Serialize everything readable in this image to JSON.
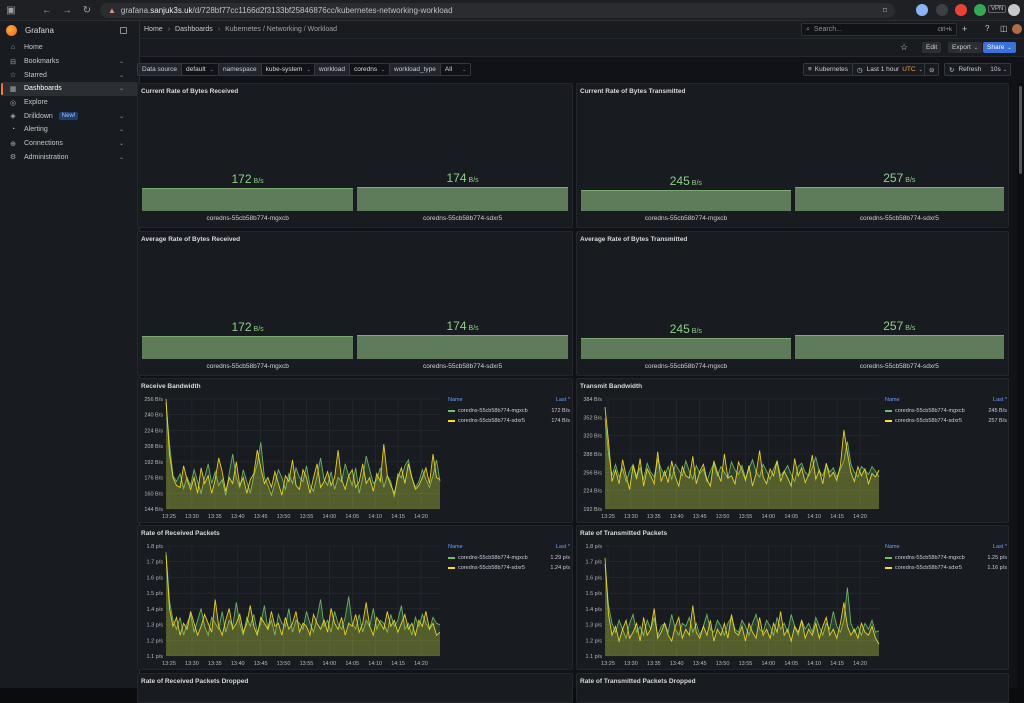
{
  "browser": {
    "url_scheme": "grafana.",
    "url_host": "sanjuk3s.uk",
    "url_path": "/d/728bf77cc1166d2f3133bf25846876cc/kubernetes-networking-workload"
  },
  "sidebar": {
    "brand": "Grafana",
    "items": [
      {
        "label": "Home",
        "icon": "home-icon",
        "chev": ""
      },
      {
        "label": "Bookmarks",
        "icon": "bookmark-icon",
        "chev": "⌄"
      },
      {
        "label": "Starred",
        "icon": "star-icon",
        "chev": "⌄"
      },
      {
        "label": "Dashboards",
        "icon": "dashboards-icon",
        "chev": "⌄"
      },
      {
        "label": "Explore",
        "icon": "compass-icon",
        "chev": ""
      },
      {
        "label": "Drilldown",
        "icon": "drilldown-icon",
        "chev": "⌄",
        "badge": "New!"
      },
      {
        "label": "Alerting",
        "icon": "bell-icon",
        "chev": "⌄"
      },
      {
        "label": "Connections",
        "icon": "connections-icon",
        "chev": "⌄"
      },
      {
        "label": "Administration",
        "icon": "gear-icon",
        "chev": "⌄"
      }
    ]
  },
  "breadcrumb": {
    "home": "Home",
    "dashboards": "Dashboards",
    "current": "Kubernetes / Networking / Workload"
  },
  "search": {
    "placeholder": "Search...",
    "shortcut": "ctrl+k"
  },
  "toolbar": {
    "edit": "Edit",
    "export": "Export",
    "share": "Share"
  },
  "variables": {
    "datasource": {
      "label": "Data source",
      "value": "default"
    },
    "namespace": {
      "label": "namespace",
      "value": "kube-system"
    },
    "workload": {
      "label": "workload",
      "value": "coredns"
    },
    "workload_type": {
      "label": "workload_type",
      "value": "All"
    }
  },
  "controls": {
    "kubernetes": "Kubernetes",
    "time": "Last 1 hour",
    "tz": "UTC",
    "refresh": "Refresh",
    "interval": "10s"
  },
  "series_names": [
    "coredns-55cb58b774-mgxcb",
    "coredns-55cb58b774-sdxr5"
  ],
  "colors": {
    "series1": "#73bf69",
    "series2": "#fade2a",
    "accent": "#3d71d9"
  },
  "panels": {
    "cur_rx": {
      "title": "Current Rate of Bytes Received",
      "values": [
        "172",
        "174"
      ],
      "unit": "B/s"
    },
    "cur_tx": {
      "title": "Current Rate of Bytes Transmitted",
      "values": [
        "245",
        "257"
      ],
      "unit": "B/s"
    },
    "avg_rx": {
      "title": "Average Rate of Bytes Received",
      "values": [
        "172",
        "174"
      ],
      "unit": "B/s"
    },
    "avg_tx": {
      "title": "Average Rate of Bytes Transmitted",
      "values": [
        "245",
        "257"
      ],
      "unit": "B/s"
    },
    "rx_bw": {
      "title": "Receive Bandwidth",
      "legend_name": "Name",
      "legend_last": "Last *",
      "last": [
        "172 B/s",
        "174 B/s"
      ]
    },
    "tx_bw": {
      "title": "Transmit Bandwidth",
      "legend_name": "Name",
      "legend_last": "Last *",
      "last": [
        "245 B/s",
        "257 B/s"
      ]
    },
    "rx_pkts": {
      "title": "Rate of Received Packets",
      "legend_name": "Name",
      "legend_last": "Last *",
      "last": [
        "1.29 p/s",
        "1.24 p/s"
      ]
    },
    "tx_pkts": {
      "title": "Rate of Transmitted Packets",
      "legend_name": "Name",
      "legend_last": "Last *",
      "last": [
        "1.25 p/s",
        "1.16 p/s"
      ]
    },
    "rx_drop": {
      "title": "Rate of Received Packets Dropped"
    },
    "tx_drop": {
      "title": "Rate of Transmitted Packets Dropped"
    }
  },
  "chart_data": [
    {
      "type": "bar",
      "title": "Current Rate of Bytes Received",
      "categories": [
        "coredns-55cb58b774-mgxcb",
        "coredns-55cb58b774-sdxr5"
      ],
      "values": [
        172,
        174
      ],
      "unit": "B/s"
    },
    {
      "type": "bar",
      "title": "Current Rate of Bytes Transmitted",
      "categories": [
        "coredns-55cb58b774-mgxcb",
        "coredns-55cb58b774-sdxr5"
      ],
      "values": [
        245,
        257
      ],
      "unit": "B/s"
    },
    {
      "type": "bar",
      "title": "Average Rate of Bytes Received",
      "categories": [
        "coredns-55cb58b774-mgxcb",
        "coredns-55cb58b774-sdxr5"
      ],
      "values": [
        172,
        174
      ],
      "unit": "B/s"
    },
    {
      "type": "bar",
      "title": "Average Rate of Bytes Transmitted",
      "categories": [
        "coredns-55cb58b774-mgxcb",
        "coredns-55cb58b774-sdxr5"
      ],
      "values": [
        245,
        257
      ],
      "unit": "B/s"
    },
    {
      "type": "area",
      "title": "Receive Bandwidth",
      "xticks": [
        "13:25",
        "13:30",
        "13:35",
        "13:40",
        "13:45",
        "13:50",
        "13:55",
        "14:00",
        "14:05",
        "14:10",
        "14:15",
        "14:20"
      ],
      "yticks": [
        "144 B/s",
        "160 B/s",
        "176 B/s",
        "192 B/s",
        "208 B/s",
        "224 B/s",
        "240 B/s",
        "256 B/s"
      ],
      "ylim": [
        144,
        256
      ],
      "series": [
        {
          "name": "coredns-55cb58b774-mgxcb",
          "values": [
            252,
            210,
            178,
            172,
            180,
            165,
            176,
            168,
            184,
            172,
            160,
            176,
            190,
            170,
            182,
            168,
            174,
            158,
            180,
            200,
            176,
            166,
            184,
            172,
            160,
            178,
            190,
            212,
            176,
            168,
            158,
            170,
            184,
            176,
            164,
            180,
            170,
            186,
            176,
            172,
            188,
            168,
            162,
            178,
            196,
            174,
            168,
            182,
            164,
            176,
            172,
            190,
            178,
            168,
            186,
            160,
            176,
            198,
            184,
            170,
            174,
            186,
            166,
            178,
            172,
            156,
            180,
            176,
            188,
            194,
            176,
            166,
            172,
            184,
            174,
            166,
            178,
            194,
            172
          ]
        },
        {
          "name": "coredns-55cb58b774-sdxr5",
          "values": [
            256,
            200,
            176,
            168,
            166,
            188,
            174,
            164,
            176,
            160,
            186,
            170,
            178,
            160,
            174,
            196,
            182,
            162,
            176,
            170,
            192,
            168,
            176,
            160,
            174,
            180,
            204,
            186,
            170,
            176,
            166,
            182,
            170,
            158,
            178,
            172,
            194,
            168,
            164,
            184,
            176,
            160,
            176,
            190,
            166,
            172,
            182,
            168,
            176,
            204,
            174,
            164,
            178,
            184,
            166,
            172,
            190,
            170,
            176,
            162,
            180,
            172,
            210,
            178,
            168,
            160,
            176,
            186,
            170,
            190,
            176,
            164,
            168,
            176,
            186,
            170,
            200,
            176,
            174
          ]
        }
      ]
    },
    {
      "type": "area",
      "title": "Transmit Bandwidth",
      "xticks": [
        "13:25",
        "13:30",
        "13:35",
        "13:40",
        "13:45",
        "13:50",
        "13:55",
        "14:00",
        "14:05",
        "14:10",
        "14:15",
        "14:20"
      ],
      "yticks": [
        "192 B/s",
        "224 B/s",
        "256 B/s",
        "288 B/s",
        "320 B/s",
        "352 B/s",
        "384 B/s"
      ],
      "ylim": [
        192,
        384
      ],
      "series": [
        {
          "name": "coredns-55cb58b774-mgxcb",
          "values": [
            350,
            290,
            250,
            270,
            248,
            262,
            240,
            258,
            270,
            250,
            264,
            244,
            272,
            256,
            248,
            278,
            262,
            250,
            266,
            244,
            270,
            260,
            250,
            276,
            258,
            244,
            268,
            254,
            262,
            240,
            258,
            272,
            250,
            266,
            256,
            246,
            274,
            260,
            252,
            268,
            246,
            262,
            278,
            256,
            248,
            270,
            258,
            244,
            262,
            276,
            250,
            258,
            268,
            252,
            240,
            266,
            272,
            256,
            250,
            264,
            282,
            258,
            250,
            270,
            256,
            264,
            248,
            262,
            276,
            310,
            270,
            256,
            248,
            266,
            260,
            252,
            266,
            258,
            248
          ]
        },
        {
          "name": "coredns-55cb58b774-sdxr5",
          "values": [
            370,
            310,
            240,
            260,
            236,
            278,
            250,
            226,
            268,
            244,
            280,
            232,
            262,
            250,
            236,
            292,
            240,
            258,
            238,
            276,
            248,
            232,
            266,
            250,
            246,
            284,
            236,
            258,
            270,
            244,
            232,
            276,
            256,
            240,
            288,
            246,
            250,
            236,
            274,
            260,
            242,
            268,
            232,
            254,
            294,
            248,
            236,
            262,
            250,
            276,
            240,
            258,
            246,
            232,
            280,
            250,
            264,
            238,
            252,
            286,
            244,
            260,
            236,
            272,
            248,
            256,
            242,
            268,
            330,
            290,
            256,
            240,
            266,
            250,
            262,
            236,
            254,
            248,
            260
          ]
        }
      ]
    },
    {
      "type": "area",
      "title": "Rate of Received Packets",
      "xticks": [
        "13:25",
        "13:30",
        "13:35",
        "13:40",
        "13:45",
        "13:50",
        "13:55",
        "14:00",
        "14:05",
        "14:10",
        "14:15",
        "14:20"
      ],
      "yticks": [
        "1.1 p/s",
        "1.2 p/s",
        "1.3 p/s",
        "1.4 p/s",
        "1.5 p/s",
        "1.6 p/s",
        "1.7 p/s",
        "1.8 p/s"
      ],
      "ylim": [
        1.08,
        1.82
      ],
      "series": [
        {
          "name": "coredns-55cb58b774-mgxcb",
          "values": [
            1.78,
            1.45,
            1.32,
            1.26,
            1.34,
            1.22,
            1.3,
            1.36,
            1.24,
            1.32,
            1.4,
            1.28,
            1.22,
            1.34,
            1.3,
            1.26,
            1.38,
            1.24,
            1.32,
            1.28,
            1.44,
            1.3,
            1.22,
            1.34,
            1.28,
            1.36,
            1.24,
            1.3,
            1.42,
            1.26,
            1.32,
            1.22,
            1.36,
            1.3,
            1.28,
            1.4,
            1.24,
            1.32,
            1.3,
            1.26,
            1.38,
            1.3,
            1.24,
            1.34,
            1.46,
            1.28,
            1.32,
            1.24,
            1.38,
            1.3,
            1.26,
            1.34,
            1.48,
            1.3,
            1.26,
            1.36,
            1.24,
            1.32,
            1.28,
            1.4,
            1.26,
            1.32,
            1.3,
            1.24,
            1.36,
            1.28,
            1.32,
            1.42,
            1.26,
            1.3,
            1.22,
            1.34,
            1.28,
            1.36,
            1.3,
            1.26,
            1.34,
            1.3,
            1.29
          ]
        },
        {
          "name": "coredns-55cb58b774-sdxr5",
          "values": [
            1.76,
            1.4,
            1.28,
            1.34,
            1.22,
            1.3,
            1.26,
            1.38,
            1.3,
            1.22,
            1.28,
            1.36,
            1.3,
            1.24,
            1.46,
            1.28,
            1.22,
            1.32,
            1.4,
            1.26,
            1.3,
            1.36,
            1.24,
            1.3,
            1.42,
            1.28,
            1.22,
            1.34,
            1.3,
            1.26,
            1.38,
            1.28,
            1.3,
            1.22,
            1.34,
            1.26,
            1.3,
            1.38,
            1.24,
            1.3,
            1.28,
            1.22,
            1.36,
            1.3,
            1.26,
            1.32,
            1.24,
            1.4,
            1.3,
            1.26,
            1.34,
            1.22,
            1.3,
            1.28,
            1.36,
            1.24,
            1.3,
            1.44,
            1.28,
            1.22,
            1.34,
            1.3,
            1.26,
            1.38,
            1.28,
            1.32,
            1.24,
            1.3,
            1.36,
            1.26,
            1.3,
            1.22,
            1.32,
            1.28,
            1.38,
            1.26,
            1.3,
            1.22,
            1.24
          ]
        }
      ]
    },
    {
      "type": "area",
      "title": "Rate of Transmitted Packets",
      "xticks": [
        "13:25",
        "13:30",
        "13:35",
        "13:40",
        "13:45",
        "13:50",
        "13:55",
        "14:00",
        "14:05",
        "14:10",
        "14:15",
        "14:20"
      ],
      "yticks": [
        "1.1 p/s",
        "1.2 p/s",
        "1.3 p/s",
        "1.4 p/s",
        "1.5 p/s",
        "1.6 p/s",
        "1.7 p/s",
        "1.8 p/s"
      ],
      "ylim": [
        1.08,
        1.82
      ],
      "series": [
        {
          "name": "coredns-55cb58b774-mgxcb",
          "values": [
            1.7,
            1.42,
            1.3,
            1.24,
            1.32,
            1.26,
            1.2,
            1.3,
            1.36,
            1.24,
            1.28,
            1.22,
            1.32,
            1.26,
            1.34,
            1.22,
            1.28,
            1.3,
            1.24,
            1.36,
            1.26,
            1.22,
            1.3,
            1.28,
            1.34,
            1.24,
            1.3,
            1.22,
            1.28,
            1.36,
            1.26,
            1.24,
            1.32,
            1.28,
            1.22,
            1.3,
            1.34,
            1.26,
            1.24,
            1.32,
            1.28,
            1.22,
            1.3,
            1.36,
            1.26,
            1.24,
            1.32,
            1.28,
            1.22,
            1.34,
            1.26,
            1.3,
            1.24,
            1.36,
            1.28,
            1.22,
            1.32,
            1.26,
            1.3,
            1.24,
            1.34,
            1.28,
            1.22,
            1.3,
            1.26,
            1.38,
            1.28,
            1.24,
            1.32,
            1.54,
            1.3,
            1.24,
            1.28,
            1.22,
            1.3,
            1.26,
            1.32,
            1.24,
            1.25
          ]
        },
        {
          "name": "coredns-55cb58b774-sdxr5",
          "values": [
            1.74,
            1.36,
            1.22,
            1.28,
            1.18,
            1.26,
            1.32,
            1.2,
            1.24,
            1.3,
            1.18,
            1.34,
            1.22,
            1.26,
            1.4,
            1.2,
            1.24,
            1.3,
            1.22,
            1.18,
            1.28,
            1.34,
            1.2,
            1.26,
            1.22,
            1.42,
            1.24,
            1.2,
            1.28,
            1.22,
            1.32,
            1.18,
            1.26,
            1.22,
            1.3,
            1.2,
            1.36,
            1.24,
            1.22,
            1.28,
            1.18,
            1.3,
            1.24,
            1.2,
            1.34,
            1.22,
            1.26,
            1.2,
            1.3,
            1.24,
            1.38,
            1.22,
            1.26,
            1.18,
            1.28,
            1.24,
            1.32,
            1.2,
            1.26,
            1.22,
            1.3,
            1.2,
            1.28,
            1.34,
            1.22,
            1.26,
            1.2,
            1.3,
            1.44,
            1.28,
            1.22,
            1.26,
            1.2,
            1.3,
            1.24,
            1.22,
            1.28,
            1.2,
            1.16
          ]
        }
      ]
    }
  ]
}
